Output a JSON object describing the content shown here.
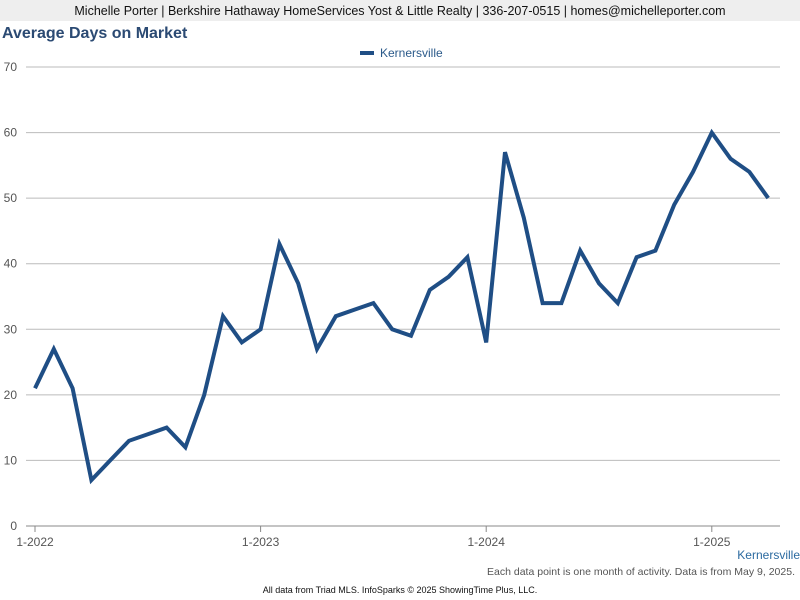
{
  "header": {
    "text": "Michelle Porter | Berkshire Hathaway HomeServices Yost & Little Realty | 336-207-0515 | homes@michelleporter.com"
  },
  "colors": {
    "series": "#1f4e85",
    "grid": "#bbbbbb",
    "header_bg": "#eeeeee"
  },
  "chart_data": {
    "type": "line",
    "title": "Average Days on Market",
    "xlabel": "",
    "ylabel": "",
    "ylim": [
      0,
      70
    ],
    "yticks": [
      0,
      10,
      20,
      30,
      40,
      50,
      60,
      70
    ],
    "xtick_labels": [
      "1-2022",
      "1-2023",
      "1-2024",
      "1-2025"
    ],
    "grid": true,
    "legend_position": "top-center",
    "x": [
      "1-2022",
      "2-2022",
      "3-2022",
      "4-2022",
      "5-2022",
      "6-2022",
      "7-2022",
      "8-2022",
      "9-2022",
      "10-2022",
      "11-2022",
      "12-2022",
      "1-2023",
      "2-2023",
      "3-2023",
      "4-2023",
      "5-2023",
      "6-2023",
      "7-2023",
      "8-2023",
      "9-2023",
      "10-2023",
      "11-2023",
      "12-2023",
      "1-2024",
      "2-2024",
      "3-2024",
      "4-2024",
      "5-2024",
      "6-2024",
      "7-2024",
      "8-2024",
      "9-2024",
      "10-2024",
      "11-2024",
      "12-2024",
      "1-2025",
      "2-2025",
      "3-2025",
      "4-2025"
    ],
    "series": [
      {
        "name": "Kernersville",
        "values": [
          21,
          27,
          21,
          7,
          10,
          13,
          14,
          15,
          12,
          20,
          32,
          28,
          30,
          43,
          37,
          27,
          32,
          33,
          34,
          30,
          29,
          36,
          38,
          41,
          28,
          57,
          47,
          34,
          34,
          42,
          37,
          34,
          41,
          42,
          49,
          54,
          60,
          56,
          54,
          50
        ]
      }
    ],
    "series_end_label": "Kernersville"
  },
  "note": "Each data point is one month of activity. Data is from May 9, 2025.",
  "footer": "All data from Triad MLS. InfoSparks © 2025 ShowingTime Plus, LLC."
}
